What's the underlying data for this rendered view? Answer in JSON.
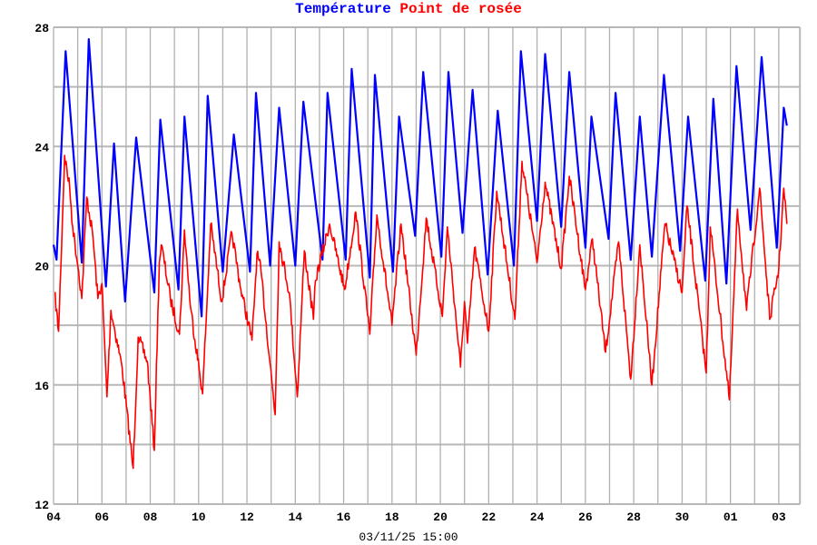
{
  "chart_data": {
    "type": "line",
    "title_parts": [
      "Température",
      "Point de rosée"
    ],
    "caption": "03/11/25 15:00",
    "xlim": [
      "2025-10-04 00:00",
      "2025-11-03 21:00"
    ],
    "x_ticks": [
      {
        "t": "2025-10-04 00:00",
        "label": "04"
      },
      {
        "t": "2025-10-06 00:00",
        "label": "06"
      },
      {
        "t": "2025-10-08 00:00",
        "label": "08"
      },
      {
        "t": "2025-10-10 00:00",
        "label": "10"
      },
      {
        "t": "2025-10-12 00:00",
        "label": "12"
      },
      {
        "t": "2025-10-14 00:00",
        "label": "14"
      },
      {
        "t": "2025-10-16 00:00",
        "label": "16"
      },
      {
        "t": "2025-10-18 00:00",
        "label": "18"
      },
      {
        "t": "2025-10-20 00:00",
        "label": "20"
      },
      {
        "t": "2025-10-22 00:00",
        "label": "22"
      },
      {
        "t": "2025-10-24 00:00",
        "label": "24"
      },
      {
        "t": "2025-10-26 00:00",
        "label": "26"
      },
      {
        "t": "2025-10-28 00:00",
        "label": "28"
      },
      {
        "t": "2025-10-30 00:00",
        "label": "30"
      },
      {
        "t": "2025-11-01 00:00",
        "label": "01"
      },
      {
        "t": "2025-11-03 00:00",
        "label": "03"
      }
    ],
    "ylim": [
      12,
      28
    ],
    "y_ticks": [
      12,
      16,
      20,
      24,
      28
    ],
    "y_grid_step": 2,
    "x_grid": "daily",
    "grid": true,
    "series": [
      {
        "name": "Température",
        "color": "#0000ff",
        "points": [
          [
            "2025-10-04 00:00",
            20.7
          ],
          [
            "2025-10-04 03:00",
            20.2
          ],
          [
            "2025-10-04 12:00",
            27.2
          ],
          [
            "2025-10-05 04:00",
            20.1
          ],
          [
            "2025-10-05 11:00",
            27.6
          ],
          [
            "2025-10-06 04:00",
            19.3
          ],
          [
            "2025-10-06 12:00",
            24.1
          ],
          [
            "2025-10-06 23:00",
            18.8
          ],
          [
            "2025-10-07 10:00",
            24.3
          ],
          [
            "2025-10-08 04:00",
            19.1
          ],
          [
            "2025-10-08 10:00",
            24.9
          ],
          [
            "2025-10-09 04:00",
            19.2
          ],
          [
            "2025-10-09 10:00",
            25.0
          ],
          [
            "2025-10-10 03:00",
            18.3
          ],
          [
            "2025-10-10 09:00",
            25.7
          ],
          [
            "2025-10-11 00:00",
            19.8
          ],
          [
            "2025-10-11 11:00",
            24.4
          ],
          [
            "2025-10-12 03:00",
            19.8
          ],
          [
            "2025-10-12 09:00",
            25.8
          ],
          [
            "2025-10-12 23:00",
            20.0
          ],
          [
            "2025-10-13 08:00",
            25.3
          ],
          [
            "2025-10-14 00:00",
            20.0
          ],
          [
            "2025-10-14 08:00",
            25.5
          ],
          [
            "2025-10-15 03:00",
            20.2
          ],
          [
            "2025-10-15 08:00",
            25.8
          ],
          [
            "2025-10-16 02:00",
            20.2
          ],
          [
            "2025-10-16 08:00",
            26.6
          ],
          [
            "2025-10-17 02:00",
            19.6
          ],
          [
            "2025-10-17 07:00",
            26.4
          ],
          [
            "2025-10-18 01:00",
            19.8
          ],
          [
            "2025-10-18 07:00",
            25.0
          ],
          [
            "2025-10-18 23:00",
            21.0
          ],
          [
            "2025-10-19 07:00",
            26.5
          ],
          [
            "2025-10-20 01:00",
            20.3
          ],
          [
            "2025-10-20 08:00",
            26.5
          ],
          [
            "2025-10-20 22:00",
            21.1
          ],
          [
            "2025-10-21 08:00",
            25.9
          ],
          [
            "2025-10-21 23:00",
            19.7
          ],
          [
            "2025-10-22 09:00",
            25.2
          ],
          [
            "2025-10-23 01:00",
            20.0
          ],
          [
            "2025-10-23 08:00",
            27.2
          ],
          [
            "2025-10-24 00:00",
            21.5
          ],
          [
            "2025-10-24 08:00",
            27.1
          ],
          [
            "2025-10-25 00:00",
            21.3
          ],
          [
            "2025-10-25 08:00",
            26.5
          ],
          [
            "2025-10-26 00:00",
            20.6
          ],
          [
            "2025-10-26 06:00",
            25.0
          ],
          [
            "2025-10-26 23:00",
            20.9
          ],
          [
            "2025-10-27 06:00",
            25.8
          ],
          [
            "2025-10-27 21:00",
            20.2
          ],
          [
            "2025-10-28 06:00",
            25.0
          ],
          [
            "2025-10-28 18:00",
            20.3
          ],
          [
            "2025-10-29 06:00",
            26.4
          ],
          [
            "2025-10-29 22:00",
            20.5
          ],
          [
            "2025-10-30 06:00",
            25.0
          ],
          [
            "2025-10-30 23:00",
            19.5
          ],
          [
            "2025-10-31 07:00",
            25.6
          ],
          [
            "2025-10-31 20:00",
            19.4
          ],
          [
            "2025-11-01 06:00",
            26.7
          ],
          [
            "2025-11-01 20:00",
            21.2
          ],
          [
            "2025-11-02 07:00",
            27.0
          ],
          [
            "2025-11-02 22:00",
            20.6
          ],
          [
            "2025-11-03 05:00",
            25.3
          ],
          [
            "2025-11-03 08:00",
            24.7
          ]
        ]
      },
      {
        "name": "Point de rosée",
        "color": "#ff0000",
        "points": [
          [
            "2025-10-04 01:00",
            19.1
          ],
          [
            "2025-10-04 05:00",
            17.8
          ],
          [
            "2025-10-04 11:00",
            23.7
          ],
          [
            "2025-10-04 16:00",
            22.6
          ],
          [
            "2025-10-04 19:00",
            21.3
          ],
          [
            "2025-10-05 01:00",
            19.8
          ],
          [
            "2025-10-05 04:00",
            18.9
          ],
          [
            "2025-10-05 09:00",
            22.3
          ],
          [
            "2025-10-05 15:00",
            21.0
          ],
          [
            "2025-10-05 20:00",
            18.9
          ],
          [
            "2025-10-06 00:00",
            19.4
          ],
          [
            "2025-10-06 05:00",
            15.6
          ],
          [
            "2025-10-06 09:00",
            18.5
          ],
          [
            "2025-10-06 20:00",
            16.6
          ],
          [
            "2025-10-07 07:00",
            13.2
          ],
          [
            "2025-10-07 12:00",
            17.6
          ],
          [
            "2025-10-07 21:00",
            16.8
          ],
          [
            "2025-10-08 04:00",
            13.8
          ],
          [
            "2025-10-08 09:00",
            20.1
          ],
          [
            "2025-10-08 11:00",
            20.7
          ],
          [
            "2025-10-08 20:00",
            18.9
          ],
          [
            "2025-10-09 05:00",
            17.7
          ],
          [
            "2025-10-09 10:00",
            21.2
          ],
          [
            "2025-10-09 16:00",
            18.6
          ],
          [
            "2025-10-10 04:00",
            15.7
          ],
          [
            "2025-10-10 12:00",
            21.4
          ],
          [
            "2025-10-10 23:00",
            18.8
          ],
          [
            "2025-10-11 09:00",
            21.1
          ],
          [
            "2025-10-11 18:00",
            19.2
          ],
          [
            "2025-10-12 05:00",
            17.5
          ],
          [
            "2025-10-12 10:00",
            20.4
          ],
          [
            "2025-10-12 14:00",
            19.8
          ],
          [
            "2025-10-13 04:00",
            15.0
          ],
          [
            "2025-10-13 08:00",
            20.8
          ],
          [
            "2025-10-13 18:00",
            19.1
          ],
          [
            "2025-10-14 02:00",
            15.6
          ],
          [
            "2025-10-14 09:00",
            20.5
          ],
          [
            "2025-10-14 18:00",
            18.2
          ],
          [
            "2025-10-14 20:00",
            19.5
          ],
          [
            "2025-10-15 10:00",
            21.4
          ],
          [
            "2025-10-16 01:00",
            19.2
          ],
          [
            "2025-10-16 12:00",
            21.8
          ],
          [
            "2025-10-17 02:00",
            17.7
          ],
          [
            "2025-10-17 09:00",
            21.7
          ],
          [
            "2025-10-18 00:00",
            18.0
          ],
          [
            "2025-10-18 09:00",
            21.4
          ],
          [
            "2025-10-19 00:00",
            17.0
          ],
          [
            "2025-10-19 10:00",
            21.6
          ],
          [
            "2025-10-20 02:00",
            18.3
          ],
          [
            "2025-10-20 07:00",
            21.3
          ],
          [
            "2025-10-20 20:00",
            16.6
          ],
          [
            "2025-10-21 00:00",
            18.8
          ],
          [
            "2025-10-21 03:00",
            17.4
          ],
          [
            "2025-10-21 10:00",
            20.6
          ],
          [
            "2025-10-22 00:00",
            17.8
          ],
          [
            "2025-10-22 08:00",
            22.5
          ],
          [
            "2025-10-23 02:00",
            18.2
          ],
          [
            "2025-10-23 09:00",
            23.5
          ],
          [
            "2025-10-24 00:00",
            20.1
          ],
          [
            "2025-10-24 08:00",
            22.8
          ],
          [
            "2025-10-25 00:00",
            19.9
          ],
          [
            "2025-10-25 08:00",
            23.0
          ],
          [
            "2025-10-26 00:00",
            19.2
          ],
          [
            "2025-10-26 07:00",
            20.9
          ],
          [
            "2025-10-26 20:00",
            17.1
          ],
          [
            "2025-10-27 09:00",
            20.8
          ],
          [
            "2025-10-27 21:00",
            16.2
          ],
          [
            "2025-10-28 06:00",
            20.7
          ],
          [
            "2025-10-28 18:00",
            16.0
          ],
          [
            "2025-10-29 07:00",
            21.4
          ],
          [
            "2025-10-30 00:00",
            19.1
          ],
          [
            "2025-10-30 05:00",
            22.0
          ],
          [
            "2025-10-31 00:00",
            16.4
          ],
          [
            "2025-10-31 04:00",
            21.3
          ],
          [
            "2025-10-31 23:00",
            15.5
          ],
          [
            "2025-11-01 07:00",
            21.9
          ],
          [
            "2025-11-01 16:00",
            18.5
          ],
          [
            "2025-11-02 05:00",
            22.6
          ],
          [
            "2025-11-02 15:00",
            18.2
          ],
          [
            "2025-11-03 00:00",
            19.9
          ],
          [
            "2025-11-03 05:00",
            22.6
          ],
          [
            "2025-11-03 08:00",
            21.4
          ]
        ]
      }
    ]
  }
}
